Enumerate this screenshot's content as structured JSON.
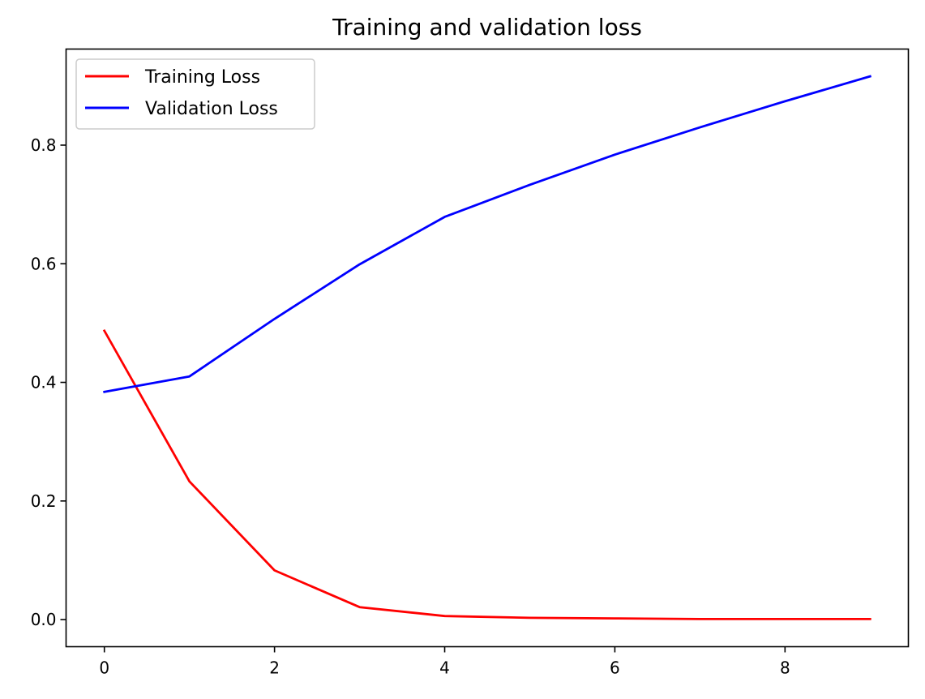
{
  "chart_data": {
    "type": "line",
    "title": "Training and validation loss",
    "xlabel": "",
    "ylabel": "",
    "xlim": [
      -0.45,
      9.45
    ],
    "ylim": [
      -0.0457,
      0.962
    ],
    "x_ticks": [
      0,
      2,
      4,
      6,
      8
    ],
    "x_tick_labels": [
      "0",
      "2",
      "4",
      "6",
      "8"
    ],
    "y_ticks": [
      0.0,
      0.2,
      0.4,
      0.6,
      0.8
    ],
    "y_tick_labels": [
      "0.0",
      "0.2",
      "0.4",
      "0.6",
      "0.8"
    ],
    "grid": false,
    "legend_position": "upper-left",
    "x": [
      0,
      1,
      2,
      3,
      4,
      5,
      6,
      7,
      8,
      9
    ],
    "series": [
      {
        "name": "Training Loss",
        "color": "#ff0000",
        "values": [
          0.487,
          0.233,
          0.083,
          0.021,
          0.006,
          0.003,
          0.002,
          0.001,
          0.001,
          0.001
        ]
      },
      {
        "name": "Validation Loss",
        "color": "#0000ff",
        "values": [
          0.384,
          0.41,
          0.507,
          0.599,
          0.679,
          0.733,
          0.784,
          0.83,
          0.874,
          0.916
        ]
      }
    ]
  }
}
